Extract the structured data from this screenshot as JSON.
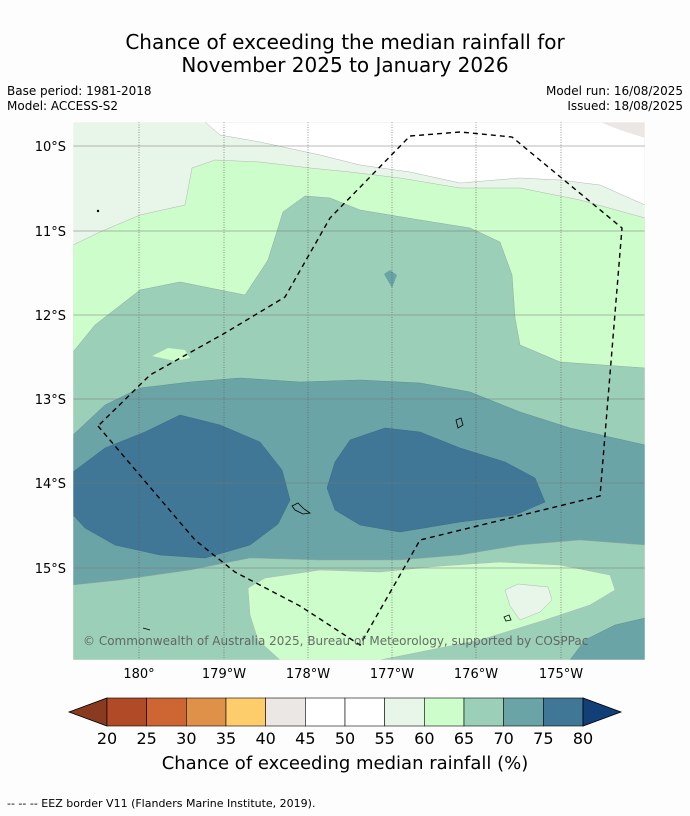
{
  "header": {
    "title_line1": "Chance of exceeding the median rainfall for",
    "title_line2": "November 2025 to January 2026",
    "base_period": "Base period: 1981-2018",
    "model": "Model: ACCESS-S2",
    "model_run": "Model run: 16/08/2025",
    "issued": "Issued: 18/08/2025"
  },
  "map": {
    "lat_labels": [
      "10°S",
      "11°S",
      "12°S",
      "13°S",
      "14°S",
      "15°S"
    ],
    "lon_labels": [
      "180°",
      "179°W",
      "178°W",
      "177°W",
      "176°W",
      "175°W"
    ],
    "copyright": "© Commonwealth of Australia 2025, Bureau of Meteorology, supported by COSPPac",
    "eez_style": "dashed black line"
  },
  "colorbar": {
    "ticks": [
      "20",
      "25",
      "30",
      "35",
      "40",
      "45",
      "50",
      "55",
      "60",
      "65",
      "70",
      "75",
      "80"
    ],
    "colors": [
      "#b04a27",
      "#cd6632",
      "#e09149",
      "#fdcd6c",
      "#ebe7e4",
      "#ffffff",
      "#ffffff",
      "#e8f5e9",
      "#ccfdca",
      "#9ccfb8",
      "#6ba4a6",
      "#417796"
    ],
    "under_color": "#8a3a21",
    "over_color": "#123f78",
    "label": "Chance of exceeding median rainfall (%)"
  },
  "footer": {
    "legend": "--  --  -- EEZ border V11 (Flanders Marine Institute, 2019)."
  }
}
